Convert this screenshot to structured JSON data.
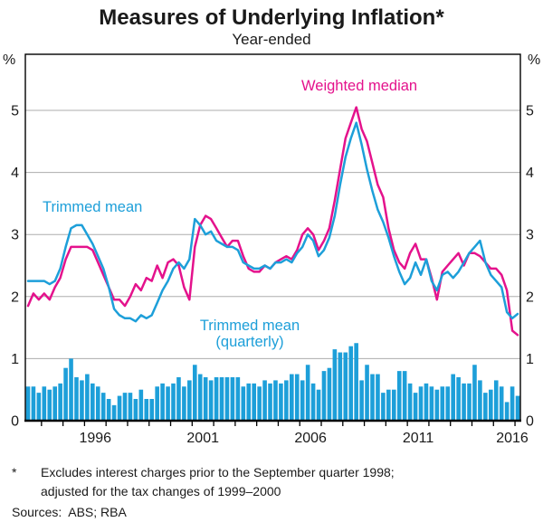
{
  "title": "Measures of Underlying Inflation*",
  "subtitle": "Year-ended",
  "axis_unit": "%",
  "labels": {
    "weighted_median": "Weighted median",
    "trimmed_mean": "Trimmed mean",
    "quarterly_line1": "Trimmed mean",
    "quarterly_line2": "(quarterly)"
  },
  "footnote": {
    "marker": "*",
    "line1": "Excludes interest charges prior to the September quarter 1998;",
    "line2": "adjusted for the tax changes of 1999–2000",
    "sources": "Sources:  ABS; RBA"
  },
  "colors": {
    "blue": "#1D9FD9",
    "magenta": "#E4128C",
    "grid": "#ADADAD",
    "frame": "#000000",
    "text": "#1a1a1a"
  },
  "chart_data": {
    "type": "line",
    "title": "Measures of Underlying Inflation*",
    "subtitle": "Year-ended",
    "frequency": "quarterly",
    "x_start": "1993 Q2",
    "x_end": "2016 Q1",
    "x_tick_years": [
      1994,
      1995,
      1996,
      1997,
      1998,
      1999,
      2000,
      2001,
      2002,
      2003,
      2004,
      2005,
      2006,
      2007,
      2008,
      2009,
      2010,
      2011,
      2012,
      2013,
      2014,
      2015,
      2016
    ],
    "x_label_years": [
      1996,
      2001,
      2006,
      2011,
      2016
    ],
    "ylabel": "%",
    "ylim": [
      0,
      5.9
    ],
    "y_ticks": [
      0,
      1,
      2,
      3,
      4,
      5
    ],
    "grid": true,
    "legend_position": "annotations-on-plot",
    "series": [
      {
        "name": "Trimmed mean",
        "type": "line",
        "color": "#1D9FD9",
        "values": [
          2.25,
          2.25,
          2.25,
          2.25,
          2.2,
          2.25,
          2.45,
          2.8,
          3.1,
          3.15,
          3.15,
          3.0,
          2.85,
          2.65,
          2.45,
          2.15,
          1.8,
          1.7,
          1.65,
          1.65,
          1.6,
          1.7,
          1.65,
          1.7,
          1.9,
          2.1,
          2.25,
          2.45,
          2.55,
          2.45,
          2.6,
          3.25,
          3.15,
          3.0,
          3.05,
          2.9,
          2.85,
          2.8,
          2.8,
          2.75,
          2.55,
          2.5,
          2.45,
          2.45,
          2.5,
          2.45,
          2.55,
          2.55,
          2.6,
          2.55,
          2.7,
          2.8,
          3.0,
          2.9,
          2.65,
          2.75,
          2.95,
          3.3,
          3.8,
          4.25,
          4.55,
          4.8,
          4.45,
          4.05,
          3.7,
          3.4,
          3.2,
          2.95,
          2.65,
          2.4,
          2.2,
          2.3,
          2.55,
          2.35,
          2.6,
          2.25,
          2.1,
          2.35,
          2.4,
          2.3,
          2.4,
          2.55,
          2.7,
          2.8,
          2.9,
          2.55,
          2.35,
          2.25,
          2.15,
          1.75,
          1.65,
          1.72
        ]
      },
      {
        "name": "Weighted median",
        "type": "line",
        "color": "#E4128C",
        "values": [
          1.85,
          2.05,
          1.95,
          2.05,
          1.95,
          2.15,
          2.3,
          2.6,
          2.8,
          2.8,
          2.8,
          2.8,
          2.75,
          2.55,
          2.35,
          2.15,
          1.95,
          1.95,
          1.85,
          2.0,
          2.2,
          2.1,
          2.3,
          2.25,
          2.5,
          2.3,
          2.55,
          2.6,
          2.5,
          2.15,
          1.95,
          2.8,
          3.15,
          3.3,
          3.25,
          3.1,
          2.95,
          2.8,
          2.9,
          2.9,
          2.65,
          2.45,
          2.4,
          2.4,
          2.5,
          2.45,
          2.55,
          2.6,
          2.65,
          2.6,
          2.75,
          3.0,
          3.1,
          3.0,
          2.75,
          2.9,
          3.1,
          3.55,
          4.05,
          4.55,
          4.8,
          5.05,
          4.7,
          4.5,
          4.15,
          3.8,
          3.6,
          3.1,
          2.75,
          2.55,
          2.45,
          2.7,
          2.85,
          2.6,
          2.6,
          2.3,
          1.95,
          2.4,
          2.5,
          2.6,
          2.7,
          2.5,
          2.7,
          2.7,
          2.65,
          2.55,
          2.45,
          2.45,
          2.35,
          2.1,
          1.45,
          1.38
        ]
      },
      {
        "name": "Trimmed mean (quarterly)",
        "type": "bar",
        "color": "#1D9FD9",
        "values": [
          0.55,
          0.55,
          0.45,
          0.55,
          0.5,
          0.55,
          0.6,
          0.85,
          1.0,
          0.7,
          0.65,
          0.75,
          0.6,
          0.55,
          0.45,
          0.35,
          0.25,
          0.4,
          0.45,
          0.45,
          0.35,
          0.5,
          0.35,
          0.35,
          0.55,
          0.6,
          0.55,
          0.6,
          0.7,
          0.55,
          0.65,
          0.9,
          0.75,
          0.7,
          0.65,
          0.7,
          0.7,
          0.7,
          0.7,
          0.7,
          0.55,
          0.6,
          0.6,
          0.55,
          0.65,
          0.6,
          0.65,
          0.6,
          0.65,
          0.75,
          0.75,
          0.65,
          0.9,
          0.6,
          0.5,
          0.8,
          0.85,
          1.15,
          1.1,
          1.1,
          1.2,
          1.25,
          0.65,
          0.9,
          0.75,
          0.75,
          0.45,
          0.5,
          0.5,
          0.8,
          0.8,
          0.6,
          0.45,
          0.55,
          0.6,
          0.55,
          0.5,
          0.55,
          0.55,
          0.75,
          0.7,
          0.6,
          0.6,
          0.9,
          0.65,
          0.45,
          0.5,
          0.65,
          0.55,
          0.3,
          0.55,
          0.4
        ]
      }
    ],
    "annotations": [
      {
        "text": "Weighted median",
        "series": "Weighted median"
      },
      {
        "text": "Trimmed mean",
        "series": "Trimmed mean"
      },
      {
        "text": "Trimmed mean (quarterly)",
        "series": "Trimmed mean (quarterly)"
      }
    ]
  }
}
